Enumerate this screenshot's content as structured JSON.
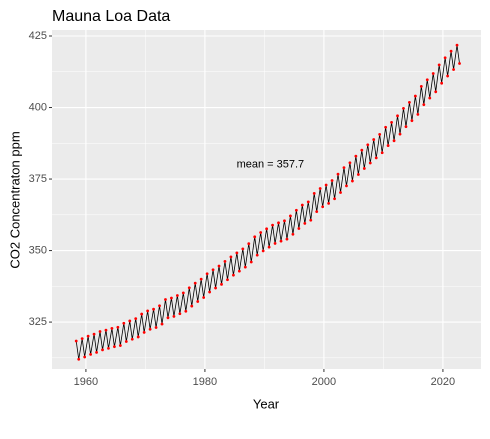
{
  "chart_data": {
    "type": "line",
    "title": "Mauna Loa Data",
    "x_label": "Year",
    "y_label": "CO2 Concentraton ppm",
    "annotation": {
      "text": "mean =  357.7",
      "x": 1991,
      "y": 380
    },
    "xlim": [
      1954.3,
      2026.4
    ],
    "ylim": [
      308.6,
      427.1
    ],
    "xticks": [
      1960,
      1980,
      2000,
      2020
    ],
    "yticks": [
      325,
      350,
      375,
      400,
      425
    ],
    "minor_xticks": [
      1970,
      1990,
      2010
    ],
    "minor_yticks": [
      312.5,
      337.5,
      362.5,
      387.5,
      412.5
    ],
    "grid": true,
    "line_color": "#000000",
    "point_color": "#ff0000",
    "x": [
      1958.37,
      1958.79,
      1959.37,
      1959.79,
      1960.37,
      1960.79,
      1961.37,
      1961.79,
      1962.37,
      1962.79,
      1963.37,
      1963.79,
      1964.37,
      1964.79,
      1965.37,
      1965.79,
      1966.37,
      1966.79,
      1967.37,
      1967.79,
      1968.37,
      1968.79,
      1969.37,
      1969.79,
      1970.37,
      1970.79,
      1971.37,
      1971.79,
      1972.37,
      1972.79,
      1973.37,
      1973.79,
      1974.37,
      1974.79,
      1975.37,
      1975.79,
      1976.37,
      1976.79,
      1977.37,
      1977.79,
      1978.37,
      1978.79,
      1979.37,
      1979.79,
      1980.37,
      1980.79,
      1981.37,
      1981.79,
      1982.37,
      1982.79,
      1983.37,
      1983.79,
      1984.37,
      1984.79,
      1985.37,
      1985.79,
      1986.37,
      1986.79,
      1987.37,
      1987.79,
      1988.37,
      1988.79,
      1989.37,
      1989.79,
      1990.37,
      1990.79,
      1991.37,
      1991.79,
      1992.37,
      1992.79,
      1993.37,
      1993.79,
      1994.37,
      1994.79,
      1995.37,
      1995.79,
      1996.37,
      1996.79,
      1997.37,
      1997.79,
      1998.37,
      1998.79,
      1999.37,
      1999.79,
      2000.37,
      2000.79,
      2001.37,
      2001.79,
      2002.37,
      2002.79,
      2003.37,
      2003.79,
      2004.37,
      2004.79,
      2005.37,
      2005.79,
      2006.37,
      2006.79,
      2007.37,
      2007.79,
      2008.37,
      2008.79,
      2009.37,
      2009.79,
      2010.37,
      2010.79,
      2011.37,
      2011.79,
      2012.37,
      2012.79,
      2013.37,
      2013.79,
      2014.37,
      2014.79,
      2015.37,
      2015.79,
      2016.37,
      2016.79,
      2017.37,
      2017.79,
      2018.37,
      2018.79,
      2019.37,
      2019.79,
      2020.37,
      2020.79,
      2021.37,
      2021.79,
      2022.37,
      2022.79
    ],
    "values": [
      318.4,
      312.0,
      319.2,
      312.8,
      320.1,
      313.7,
      320.8,
      314.4,
      321.7,
      315.3,
      322.2,
      315.8,
      322.8,
      316.4,
      323.2,
      316.8,
      324.6,
      318.2,
      325.4,
      319.0,
      326.2,
      319.8,
      327.8,
      321.4,
      328.9,
      322.5,
      329.5,
      323.1,
      330.7,
      324.3,
      332.9,
      326.5,
      333.4,
      327.0,
      334.3,
      327.9,
      335.2,
      328.8,
      337.0,
      330.6,
      338.6,
      332.2,
      340.0,
      333.6,
      341.9,
      335.5,
      343.3,
      336.9,
      344.6,
      338.2,
      346.2,
      339.8,
      347.8,
      341.4,
      349.2,
      342.8,
      350.6,
      344.2,
      352.4,
      346.0,
      354.8,
      348.4,
      356.3,
      349.9,
      357.6,
      351.2,
      358.9,
      352.5,
      359.7,
      353.3,
      360.4,
      354.0,
      362.1,
      355.7,
      364.1,
      357.7,
      365.9,
      359.5,
      367.0,
      360.6,
      370.0,
      363.6,
      371.7,
      365.3,
      372.9,
      366.5,
      374.5,
      368.1,
      376.7,
      370.3,
      379.0,
      372.6,
      380.7,
      374.3,
      383.0,
      376.6,
      385.1,
      378.7,
      387.0,
      380.6,
      388.8,
      382.4,
      390.6,
      384.2,
      393.1,
      386.7,
      394.8,
      388.4,
      397.1,
      390.7,
      399.7,
      393.3,
      401.8,
      395.4,
      404.0,
      397.6,
      407.4,
      401.0,
      409.7,
      403.3,
      411.9,
      405.5,
      414.9,
      408.5,
      417.4,
      411.0,
      419.7,
      413.3,
      421.8,
      415.4
    ]
  }
}
